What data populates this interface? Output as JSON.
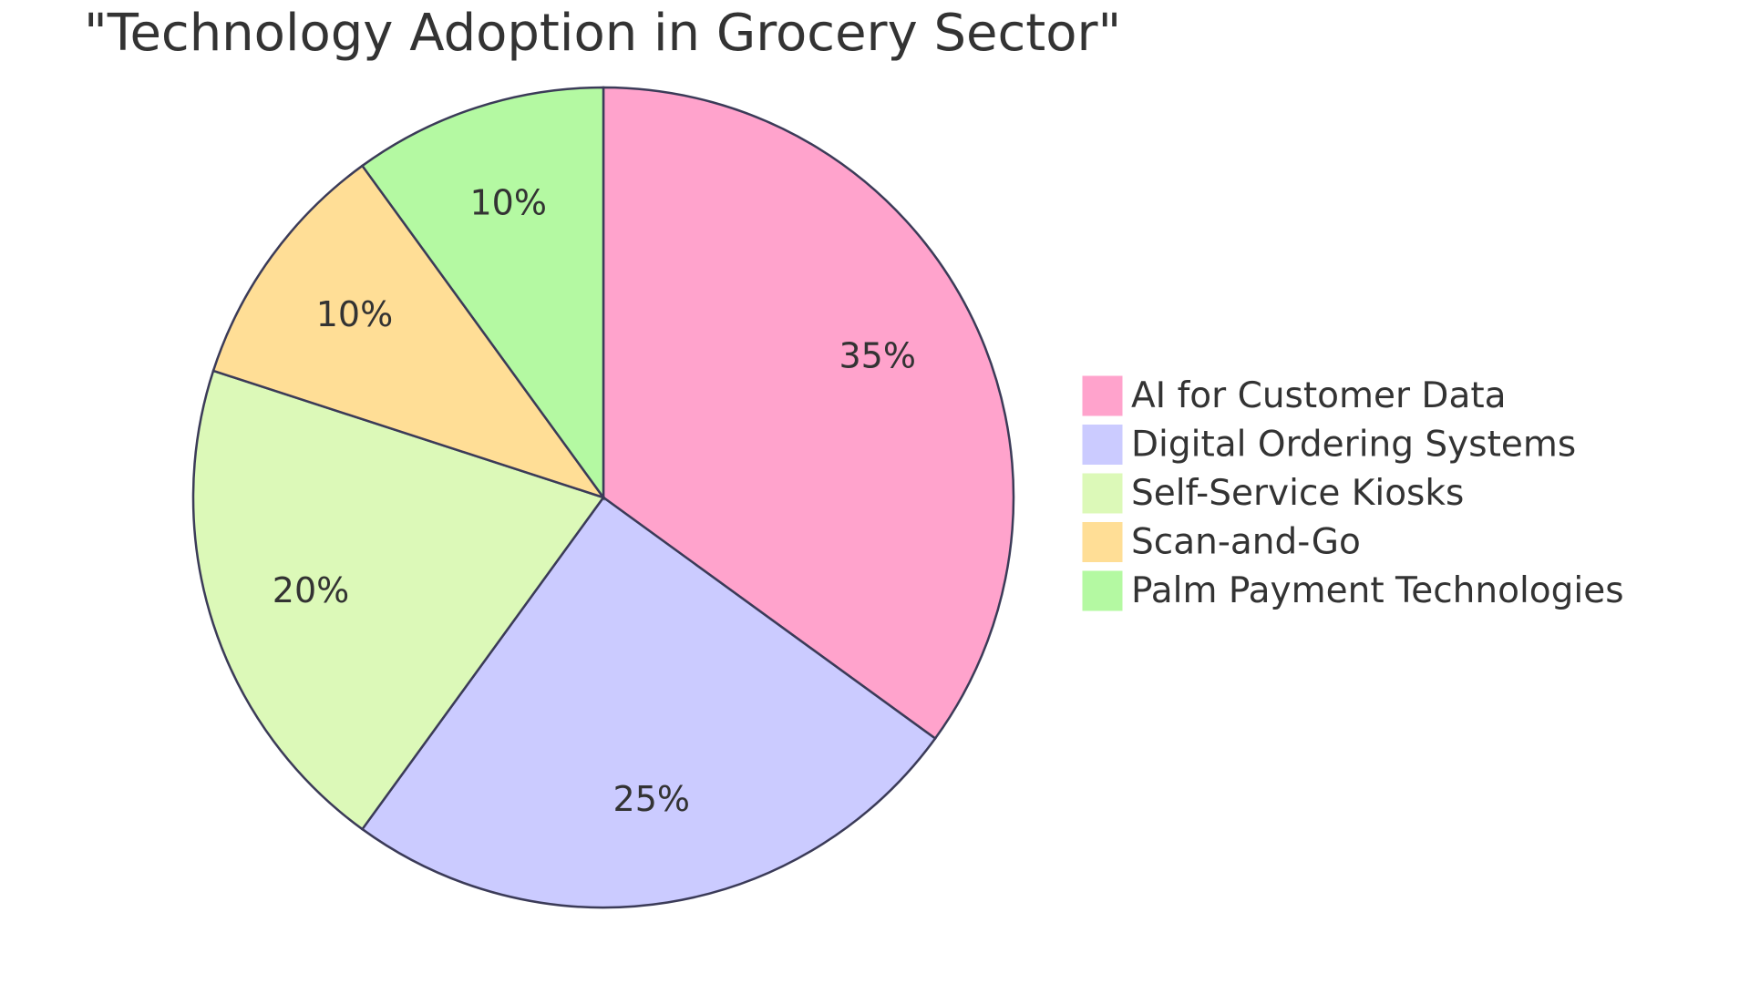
{
  "chart_data": {
    "type": "pie",
    "title": "\"Technology Adoption in Grocery Sector\"",
    "categories": [
      "AI for Customer Data",
      "Digital Ordering Systems",
      "Self-Service Kiosks",
      "Scan-and-Go",
      "Palm Payment Technologies"
    ],
    "values": [
      35,
      25,
      20,
      10,
      10
    ],
    "value_labels": [
      "35%",
      "25%",
      "20%",
      "10%",
      "10%"
    ],
    "colors": [
      "#ffa3cc",
      "#cbcbff",
      "#dcf9b8",
      "#ffde96",
      "#b4f9a2"
    ],
    "legend": "right"
  }
}
